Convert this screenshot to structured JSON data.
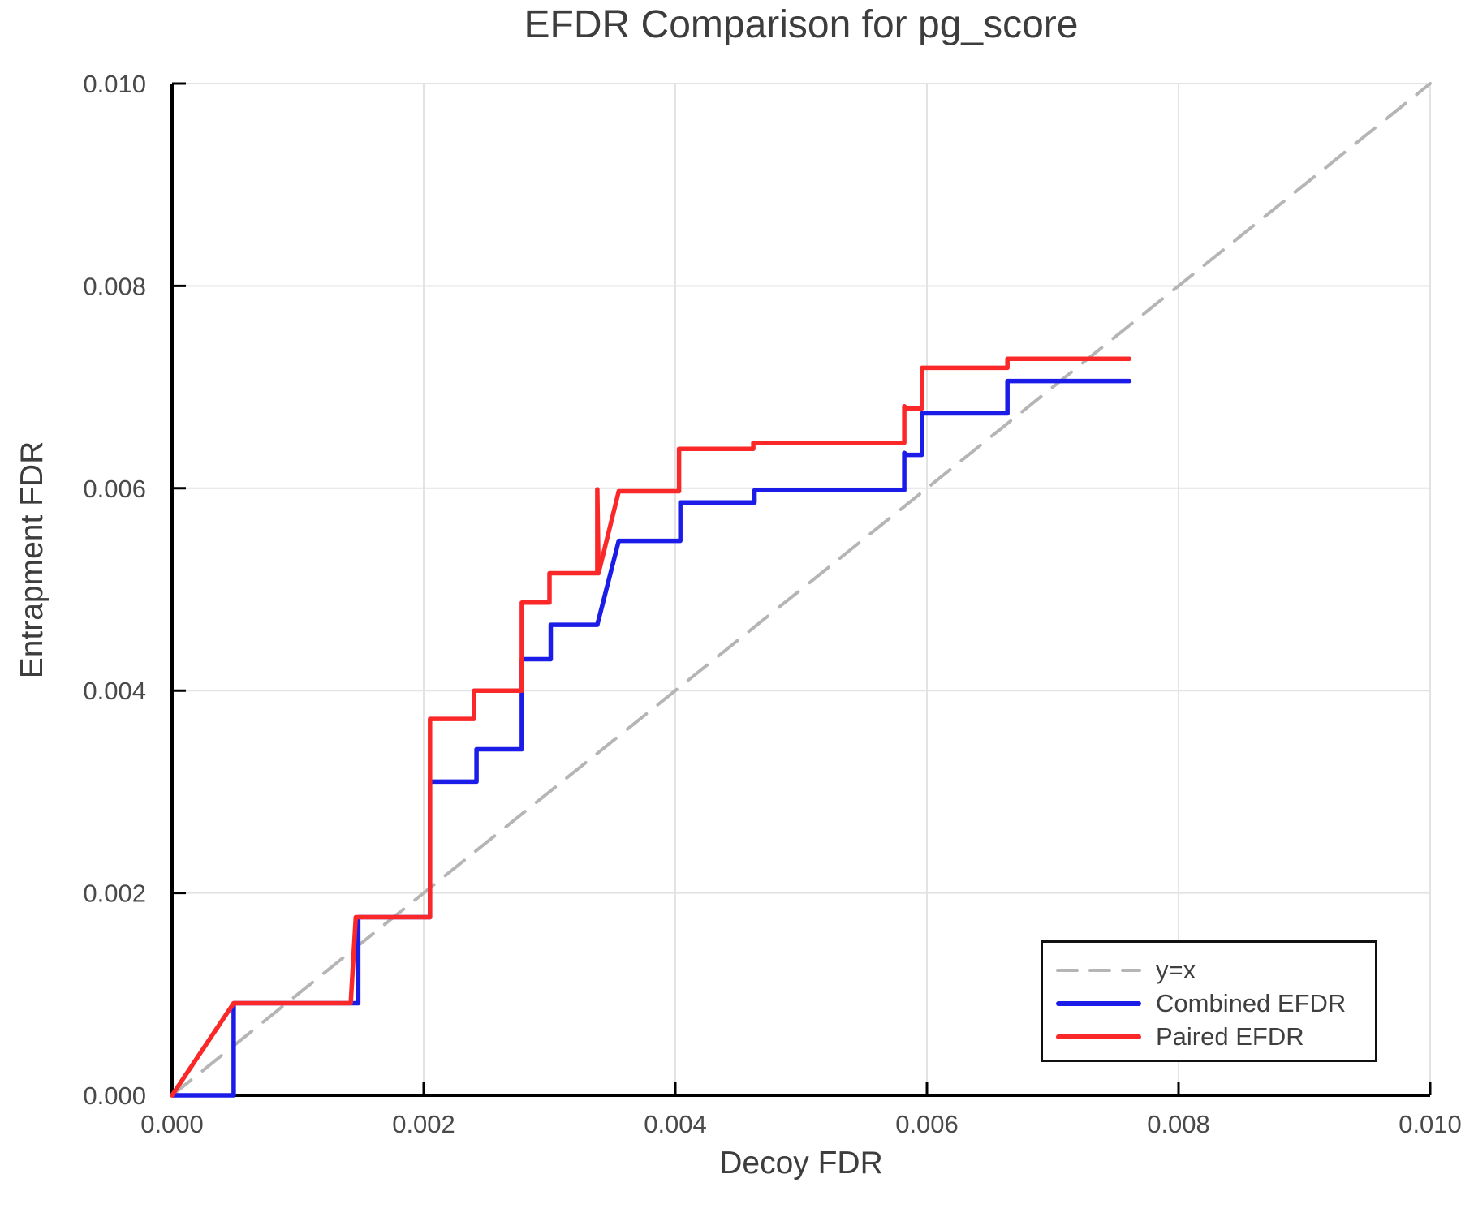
{
  "chart_data": {
    "type": "line",
    "title": "EFDR Comparison for pg_score",
    "xlabel": "Decoy FDR",
    "ylabel": "Entrapment FDR",
    "xlim": [
      0.0,
      0.01
    ],
    "ylim": [
      0.0,
      0.01
    ],
    "x_tick_values": [
      0.0,
      0.002,
      0.004,
      0.006,
      0.008,
      0.01
    ],
    "x_tick_labels": [
      "0.000",
      "0.002",
      "0.004",
      "0.006",
      "0.008",
      "0.010"
    ],
    "y_tick_values": [
      0.0,
      0.002,
      0.004,
      0.006,
      0.008,
      0.01
    ],
    "y_tick_labels": [
      "0.000",
      "0.002",
      "0.004",
      "0.006",
      "0.008",
      "0.010"
    ],
    "grid": true,
    "legend_position": "lower-right",
    "colors": {
      "grid": "#e3e3e3",
      "spine": "#000000",
      "title_text": "#3d3d3d",
      "tick_text": "#4a4a4a",
      "legend_border": "#111111"
    },
    "series": [
      {
        "name": "y=x",
        "color": "#b5b5b5",
        "style": "dashed",
        "width": 4,
        "points": [
          [
            0.0,
            0.0
          ],
          [
            0.01,
            0.01
          ]
        ]
      },
      {
        "name": "Combined EFDR",
        "color": "#1c1ce8",
        "style": "solid",
        "width": 5.5,
        "points": [
          [
            0.0,
            0.0
          ],
          [
            0.00049,
            0.0
          ],
          [
            0.00049,
            0.00091
          ],
          [
            0.00148,
            0.00091
          ],
          [
            0.00148,
            0.00176
          ],
          [
            0.00205,
            0.00176
          ],
          [
            0.00205,
            0.0031
          ],
          [
            0.00242,
            0.0031
          ],
          [
            0.00242,
            0.00342
          ],
          [
            0.00278,
            0.00342
          ],
          [
            0.00278,
            0.00431
          ],
          [
            0.00301,
            0.00431
          ],
          [
            0.00301,
            0.00465
          ],
          [
            0.00338,
            0.00465
          ],
          [
            0.00355,
            0.00548
          ],
          [
            0.00404,
            0.00548
          ],
          [
            0.00404,
            0.00586
          ],
          [
            0.00463,
            0.00586
          ],
          [
            0.00463,
            0.00598
          ],
          [
            0.00582,
            0.00598
          ],
          [
            0.00582,
            0.00635
          ],
          [
            0.00584,
            0.00633
          ],
          [
            0.00596,
            0.00633
          ],
          [
            0.00596,
            0.00674
          ],
          [
            0.00664,
            0.00674
          ],
          [
            0.00664,
            0.00706
          ],
          [
            0.00761,
            0.00706
          ]
        ]
      },
      {
        "name": "Paired EFDR",
        "color": "#fa2828",
        "style": "solid",
        "width": 5.5,
        "points": [
          [
            0.0,
            0.0
          ],
          [
            0.00049,
            0.00091
          ],
          [
            0.00142,
            0.00091
          ],
          [
            0.00146,
            0.00176
          ],
          [
            0.00205,
            0.00176
          ],
          [
            0.00205,
            0.00372
          ],
          [
            0.0024,
            0.00372
          ],
          [
            0.0024,
            0.004
          ],
          [
            0.00278,
            0.004
          ],
          [
            0.00278,
            0.00487
          ],
          [
            0.003,
            0.00487
          ],
          [
            0.003,
            0.00516
          ],
          [
            0.00338,
            0.00516
          ],
          [
            0.00338,
            0.00599
          ],
          [
            0.00339,
            0.00516
          ],
          [
            0.00355,
            0.00597
          ],
          [
            0.00403,
            0.00597
          ],
          [
            0.00403,
            0.00639
          ],
          [
            0.00462,
            0.00639
          ],
          [
            0.00462,
            0.00645
          ],
          [
            0.00582,
            0.00645
          ],
          [
            0.00582,
            0.00681
          ],
          [
            0.00584,
            0.00679
          ],
          [
            0.00596,
            0.00679
          ],
          [
            0.00596,
            0.00719
          ],
          [
            0.00664,
            0.00719
          ],
          [
            0.00664,
            0.00728
          ],
          [
            0.00761,
            0.00728
          ]
        ]
      }
    ]
  }
}
